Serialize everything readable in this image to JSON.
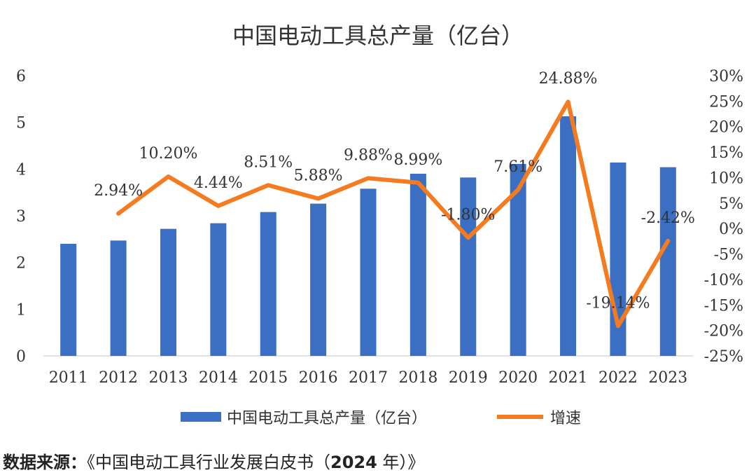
{
  "chart_data": {
    "type": "bar",
    "title": "中国电动工具总产量（亿台）",
    "categories": [
      "2011",
      "2012",
      "2013",
      "2014",
      "2015",
      "2016",
      "2017",
      "2018",
      "2019",
      "2020",
      "2021",
      "2022",
      "2023"
    ],
    "series": [
      {
        "name": "中国电动工具总产量（亿台）",
        "type": "bar",
        "axis": "left",
        "color": "#3a6fc4",
        "values": [
          2.4,
          2.47,
          2.72,
          2.84,
          3.08,
          3.26,
          3.58,
          3.9,
          3.82,
          4.11,
          5.13,
          4.14,
          4.04
        ]
      },
      {
        "name": "增速",
        "type": "line",
        "axis": "right",
        "color": "#f47b20",
        "values": [
          null,
          2.94,
          10.2,
          4.44,
          8.51,
          5.88,
          9.88,
          8.99,
          -1.8,
          7.61,
          24.88,
          -19.14,
          -2.42
        ],
        "labels": [
          null,
          "2.94%",
          "10.20%",
          "4.44%",
          "8.51%",
          "5.88%",
          "9.88%",
          "8.99%",
          "-1.80%",
          "7.61%",
          "24.88%",
          "-19.14%",
          "-2.42%"
        ]
      }
    ],
    "y_left": {
      "min": 0,
      "max": 6,
      "ticks": [
        "0",
        "1",
        "2",
        "3",
        "4",
        "5",
        "6"
      ]
    },
    "y_right": {
      "min": -25,
      "max": 30,
      "ticks": [
        "-25%",
        "-20%",
        "-15%",
        "-10%",
        "-5%",
        "0%",
        "5%",
        "10%",
        "15%",
        "20%",
        "25%",
        "30%"
      ]
    },
    "grid": false,
    "legend": "bottom",
    "legend_items": [
      "中国电动工具总产量（亿台）",
      "增速"
    ]
  },
  "source": {
    "label": "数据来源：",
    "text": "《中国电动工具行业发展白皮书（",
    "year": "2024",
    "suffix": " 年）》"
  }
}
